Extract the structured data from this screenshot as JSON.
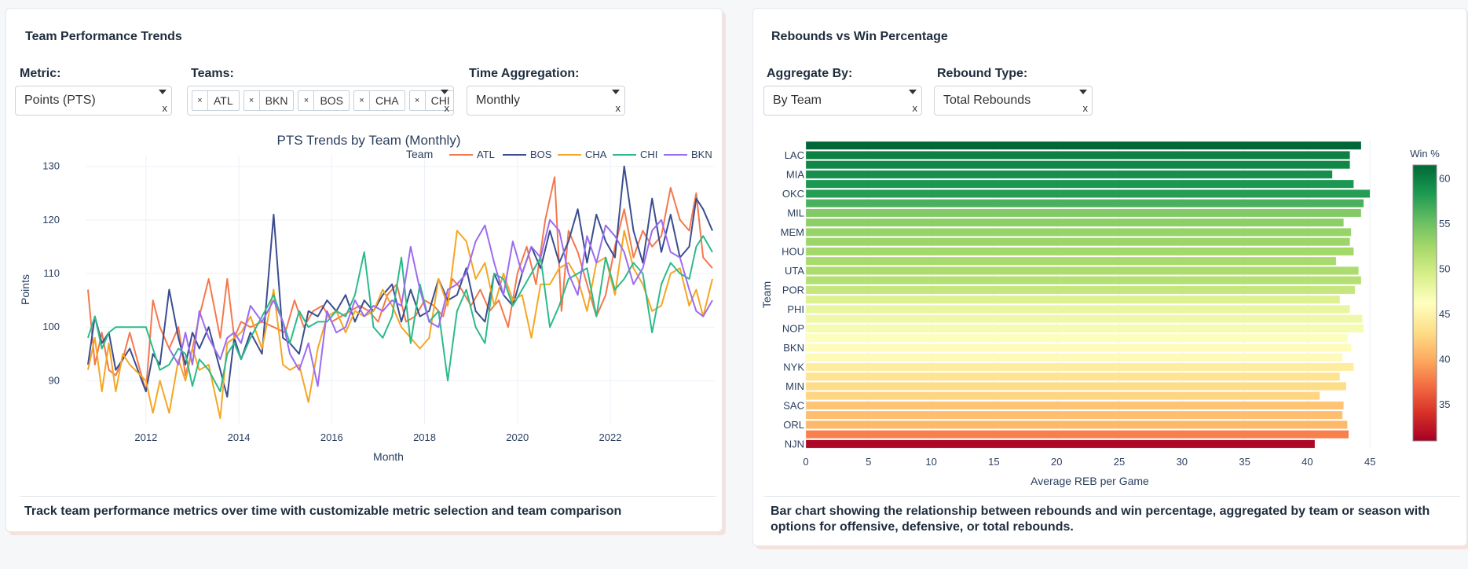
{
  "left_panel": {
    "title": "Team Performance Trends",
    "controls": {
      "metric": {
        "label": "Metric:",
        "value": "Points (PTS)"
      },
      "teams": {
        "label": "Teams:",
        "chips": [
          "ATL",
          "BKN",
          "BOS",
          "CHA",
          "CHI"
        ],
        "remove_glyph": "×"
      },
      "time_aggregation": {
        "label": "Time Aggregation:",
        "value": "Monthly"
      },
      "clear_glyph": "x"
    },
    "description": "Track team performance metrics over time with customizable metric selection and team comparison"
  },
  "right_panel": {
    "title": "Rebounds vs Win Percentage",
    "controls": {
      "aggregate_by": {
        "label": "Aggregate By:",
        "value": "By Team"
      },
      "rebound_type": {
        "label": "Rebound Type:",
        "value": "Total Rebounds"
      },
      "clear_glyph": "x"
    },
    "description_line1": "Bar chart showing the relationship between rebounds and win percentage, aggregated by team or season with",
    "description_line2": "options for offensive, defensive, or total rebounds."
  },
  "chart_data": [
    {
      "type": "line",
      "title": "PTS Trends by Team (Monthly)",
      "xlabel": "Month",
      "ylabel": "Points",
      "xlim": [
        2010.7,
        2024.25
      ],
      "ylim": [
        82,
        132
      ],
      "xticks": [
        2012,
        2014,
        2016,
        2018,
        2020,
        2022
      ],
      "yticks": [
        90,
        100,
        110,
        120,
        130
      ],
      "grid": true,
      "legend": {
        "title": "Team",
        "position": "top-right",
        "orientation": "horizontal"
      },
      "series": [
        {
          "name": "ATL",
          "color": "#f4784d",
          "x": [
            2010.75,
            2010.9,
            2011.05,
            2011.2,
            2011.35,
            2011.5,
            2011.65,
            2012.0,
            2012.15,
            2012.3,
            2012.5,
            2012.7,
            2012.85,
            2013.0,
            2013.15,
            2013.35,
            2013.6,
            2013.75,
            2013.9,
            2014.05,
            2014.25,
            2014.5,
            2014.75,
            2015.0,
            2015.2,
            2015.4,
            2015.6,
            2015.8,
            2016.0,
            2016.2,
            2016.4,
            2016.6,
            2016.8,
            2017.0,
            2017.2,
            2017.4,
            2017.6,
            2017.8,
            2018.0,
            2018.2,
            2018.4,
            2018.6,
            2018.8,
            2019.0,
            2019.2,
            2019.4,
            2019.6,
            2019.8,
            2020.0,
            2020.2,
            2020.4,
            2020.6,
            2020.8,
            2020.95,
            2021.1,
            2021.3,
            2021.5,
            2021.7,
            2021.9,
            2022.1,
            2022.3,
            2022.5,
            2022.7,
            2022.9,
            2023.1,
            2023.3,
            2023.5,
            2023.7,
            2023.85,
            2024.0,
            2024.2
          ],
          "y": [
            107,
            93,
            99,
            92,
            91,
            94,
            99,
            88,
            105,
            100,
            96,
            100,
            91,
            96,
            102,
            109,
            98,
            109,
            98,
            101,
            100,
            101,
            100,
            99,
            105,
            100,
            103,
            104,
            101,
            102,
            103,
            104,
            103,
            101,
            106,
            108,
            101,
            102,
            105,
            104,
            102,
            109,
            107,
            104,
            107,
            103,
            105,
            100,
            110,
            115,
            108,
            120,
            128,
            103,
            118,
            114,
            108,
            102,
            106,
            115,
            122,
            113,
            118,
            115,
            117,
            126,
            120,
            118,
            125,
            113,
            111
          ]
        },
        {
          "name": "BOS",
          "color": "#3b4d8f",
          "x": [
            2010.75,
            2010.9,
            2011.05,
            2011.2,
            2011.35,
            2011.5,
            2011.65,
            2012.0,
            2012.15,
            2012.3,
            2012.5,
            2012.7,
            2012.85,
            2013.0,
            2013.15,
            2013.35,
            2013.6,
            2013.75,
            2013.9,
            2014.05,
            2014.25,
            2014.5,
            2014.75,
            2014.95,
            2015.1,
            2015.3,
            2015.5,
            2015.7,
            2015.9,
            2016.1,
            2016.3,
            2016.5,
            2016.7,
            2016.9,
            2017.1,
            2017.3,
            2017.5,
            2017.7,
            2017.9,
            2018.1,
            2018.3,
            2018.5,
            2018.7,
            2018.9,
            2019.1,
            2019.3,
            2019.5,
            2019.7,
            2019.9,
            2020.1,
            2020.3,
            2020.5,
            2020.7,
            2020.9,
            2021.1,
            2021.3,
            2021.5,
            2021.7,
            2021.9,
            2022.1,
            2022.3,
            2022.5,
            2022.7,
            2022.9,
            2023.1,
            2023.3,
            2023.5,
            2023.7,
            2023.85,
            2024.0,
            2024.2
          ],
          "y": [
            93,
            102,
            97,
            99,
            92,
            94,
            96,
            88,
            95,
            93,
            107,
            98,
            93,
            99,
            96,
            100,
            92,
            87,
            98,
            94,
            99,
            95,
            121,
            98,
            97,
            95,
            103,
            102,
            105,
            103,
            106,
            101,
            105,
            103,
            106,
            108,
            101,
            107,
            102,
            103,
            109,
            105,
            106,
            111,
            103,
            101,
            110,
            106,
            104,
            110,
            115,
            111,
            118,
            112,
            116,
            122,
            112,
            121,
            116,
            113,
            130,
            118,
            112,
            124,
            114,
            121,
            113,
            115,
            124,
            122,
            118
          ]
        },
        {
          "name": "CHA",
          "color": "#f5a623",
          "x": [
            2010.75,
            2010.9,
            2011.05,
            2011.2,
            2011.35,
            2011.5,
            2011.65,
            2012.0,
            2012.15,
            2012.3,
            2012.5,
            2012.7,
            2012.85,
            2013.0,
            2013.15,
            2013.35,
            2013.6,
            2013.75,
            2013.9,
            2014.05,
            2014.25,
            2014.5,
            2014.75,
            2014.95,
            2015.1,
            2015.3,
            2015.5,
            2015.7,
            2015.9,
            2016.1,
            2016.3,
            2016.5,
            2016.7,
            2016.9,
            2017.1,
            2017.3,
            2017.5,
            2017.7,
            2017.9,
            2018.1,
            2018.3,
            2018.5,
            2018.7,
            2018.9,
            2019.1,
            2019.3,
            2019.5,
            2019.7,
            2019.9,
            2020.1,
            2020.3,
            2020.5,
            2020.7,
            2020.9,
            2021.1,
            2021.3,
            2021.5,
            2021.7,
            2021.9,
            2022.1,
            2022.3,
            2022.5,
            2022.7,
            2022.9,
            2023.1,
            2023.3,
            2023.5,
            2023.7,
            2023.85,
            2024.0,
            2024.2
          ],
          "y": [
            92,
            98,
            88,
            97,
            88,
            95,
            93,
            90,
            84,
            90,
            84,
            94,
            90,
            96,
            92,
            93,
            83,
            97,
            98,
            99,
            102,
            96,
            107,
            93,
            92,
            93,
            86,
            96,
            102,
            103,
            99,
            103,
            102,
            103,
            107,
            104,
            100,
            98,
            96,
            98,
            109,
            104,
            118,
            116,
            109,
            112,
            104,
            110,
            105,
            106,
            98,
            108,
            108,
            111,
            112,
            109,
            103,
            112,
            113,
            106,
            118,
            111,
            108,
            103,
            104,
            110,
            111,
            104,
            107,
            102,
            109
          ]
        },
        {
          "name": "CHI",
          "color": "#2bbb8a",
          "x": [
            2010.75,
            2010.9,
            2011.05,
            2011.2,
            2011.35,
            2011.5,
            2011.65,
            2012.0,
            2012.15,
            2012.3,
            2012.5,
            2012.7,
            2012.85,
            2013.0,
            2013.15,
            2013.35,
            2013.6,
            2013.75,
            2013.9,
            2014.05,
            2014.25,
            2014.5,
            2014.75,
            2014.95,
            2015.1,
            2015.3,
            2015.5,
            2015.7,
            2015.9,
            2016.1,
            2016.3,
            2016.5,
            2016.7,
            2016.9,
            2017.1,
            2017.3,
            2017.5,
            2017.7,
            2017.9,
            2018.1,
            2018.3,
            2018.5,
            2018.7,
            2018.9,
            2019.1,
            2019.3,
            2019.5,
            2019.7,
            2019.9,
            2020.1,
            2020.3,
            2020.5,
            2020.7,
            2020.9,
            2021.1,
            2021.3,
            2021.5,
            2021.7,
            2021.9,
            2022.1,
            2022.3,
            2022.5,
            2022.7,
            2022.9,
            2023.1,
            2023.3,
            2023.5,
            2023.7,
            2023.85,
            2024.0,
            2024.2
          ],
          "y": [
            98,
            102,
            96,
            99,
            100,
            100,
            100,
            100,
            96,
            92,
            93,
            96,
            95,
            89,
            94,
            92,
            88,
            95,
            97,
            94,
            98,
            102,
            106,
            101,
            97,
            103,
            100,
            101,
            101,
            103,
            102,
            106,
            114,
            100,
            98,
            102,
            113,
            97,
            108,
            101,
            103,
            90,
            103,
            107,
            100,
            97,
            110,
            109,
            104,
            107,
            110,
            113,
            100,
            104,
            109,
            110,
            111,
            102,
            113,
            107,
            109,
            112,
            110,
            99,
            108,
            112,
            110,
            109,
            115,
            117,
            114
          ]
        },
        {
          "name": "BKN",
          "color": "#9b6cf0",
          "x": [
            2012.5,
            2012.7,
            2012.85,
            2013.0,
            2013.15,
            2013.35,
            2013.6,
            2013.75,
            2013.9,
            2014.05,
            2014.25,
            2014.5,
            2014.75,
            2014.95,
            2015.1,
            2015.3,
            2015.5,
            2015.7,
            2015.9,
            2016.1,
            2016.3,
            2016.5,
            2016.7,
            2016.9,
            2017.1,
            2017.3,
            2017.5,
            2017.7,
            2017.9,
            2018.1,
            2018.3,
            2018.5,
            2018.7,
            2018.9,
            2019.1,
            2019.3,
            2019.5,
            2019.7,
            2019.9,
            2020.1,
            2020.3,
            2020.5,
            2020.7,
            2020.9,
            2021.1,
            2021.3,
            2021.5,
            2021.7,
            2021.9,
            2022.1,
            2022.3,
            2022.5,
            2022.7,
            2022.9,
            2023.1,
            2023.3,
            2023.5,
            2023.7,
            2023.85,
            2024.0,
            2024.2
          ],
          "y": [
            96,
            93,
            99,
            93,
            103,
            98,
            94,
            98,
            99,
            97,
            104,
            101,
            105,
            101,
            95,
            92,
            97,
            89,
            103,
            99,
            100,
            105,
            102,
            104,
            103,
            105,
            104,
            115,
            107,
            101,
            100,
            107,
            108,
            110,
            116,
            119,
            112,
            106,
            116,
            110,
            115,
            113,
            120,
            118,
            110,
            106,
            117,
            112,
            119,
            117,
            114,
            108,
            111,
            118,
            120,
            114,
            113,
            107,
            103,
            102,
            105
          ]
        }
      ]
    },
    {
      "type": "bar",
      "orientation": "horizontal",
      "xlabel": "Average REB per Game",
      "ylabel": "Team",
      "xlim": [
        0,
        45.3
      ],
      "xticks": [
        0,
        5,
        10,
        15,
        20,
        25,
        30,
        35,
        40,
        45
      ],
      "grid": true,
      "colorbar": {
        "title": "Win %",
        "colorscale": "RdYlGn",
        "range": [
          31,
          61.5
        ],
        "ticks": [
          35,
          40,
          45,
          50,
          55,
          60
        ],
        "position": "right"
      },
      "categories": [
        "",
        "LAC",
        "",
        "MIA",
        "",
        "OKC",
        "",
        "MIL",
        "",
        "MEM",
        "",
        "HOU",
        "",
        "UTA",
        "",
        "POR",
        "",
        "PHI",
        "",
        "NOP",
        "",
        "BKN",
        "",
        "NYK",
        "",
        "MIN",
        "",
        "SAC",
        "",
        "ORL",
        "",
        "NJN"
      ],
      "values": [
        44.3,
        43.4,
        43.4,
        42.0,
        43.7,
        45.0,
        44.5,
        44.3,
        42.9,
        43.5,
        43.4,
        43.7,
        42.3,
        44.1,
        44.3,
        43.8,
        42.6,
        43.4,
        44.4,
        44.5,
        43.2,
        43.5,
        42.8,
        43.7,
        42.6,
        43.1,
        41.0,
        42.9,
        42.8,
        43.2,
        43.3,
        40.6
      ],
      "win_pct": [
        61.5,
        60.0,
        59.5,
        59.0,
        58.5,
        58.0,
        56.5,
        54.0,
        53.5,
        53.0,
        52.8,
        52.5,
        52.2,
        52.0,
        51.5,
        50.5,
        49.0,
        48.0,
        47.5,
        47.0,
        46.5,
        46.0,
        45.8,
        44.5,
        43.5,
        43.0,
        42.5,
        41.5,
        41.2,
        40.8,
        38.0,
        31.5
      ]
    }
  ]
}
